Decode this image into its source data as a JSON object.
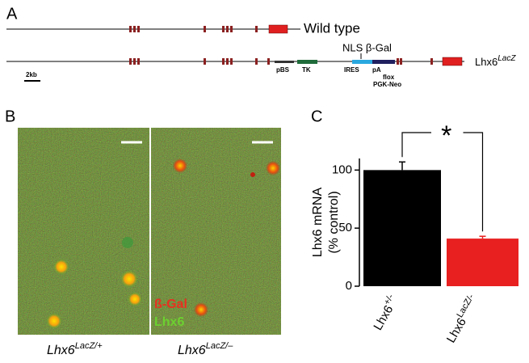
{
  "panel_a": {
    "letter": "A",
    "wild_type_label": "Wild type",
    "lacz_label": "Lhx6",
    "lacz_superscript": "LacZ",
    "cassette_label": "NLS β-Gal",
    "scale_label": "2kb",
    "elements": [
      "pBS",
      "TK",
      "IRES",
      "pA",
      "flox",
      "PGK-Neo"
    ]
  },
  "panel_b": {
    "letter": "B",
    "stain_red": "ß-Gal",
    "stain_green": "Lhx6",
    "left_label": "Lhx6",
    "left_superscript": "LacZ/+",
    "right_label": "Lhx6",
    "right_superscript": "LacZ/–"
  },
  "chart_data": {
    "type": "bar",
    "letter": "C",
    "ylabel": "Lhx6 mRNA",
    "ylabel2": "(% control)",
    "significance": "*",
    "categories": [
      "Lhx6",
      "Lhx6"
    ],
    "category_superscripts": [
      "+/-",
      "LacZ/-"
    ],
    "values": [
      100,
      41
    ],
    "errors": [
      7,
      2
    ],
    "colors": [
      "#000000",
      "#e82020"
    ],
    "ylim": [
      0,
      110
    ],
    "yticks": [
      0,
      50,
      100
    ]
  }
}
